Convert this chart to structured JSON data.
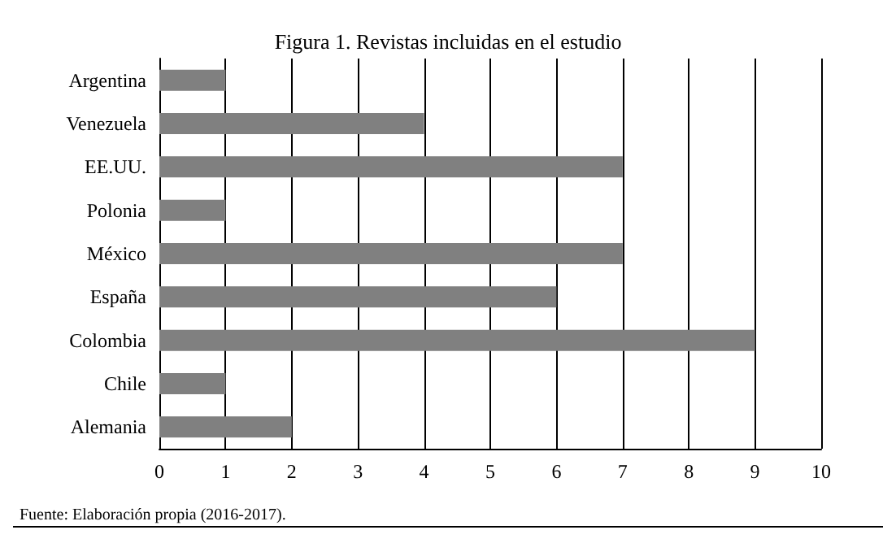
{
  "chart_data": {
    "type": "bar",
    "orientation": "horizontal",
    "title": "Figura 1. Revistas incluidas en el estudio",
    "categories": [
      "Argentina",
      "Venezuela",
      "EE.UU.",
      "Polonia",
      "México",
      "España",
      "Colombia",
      "Chile",
      "Alemania"
    ],
    "values": [
      1,
      4,
      7,
      1,
      7,
      6,
      9,
      1,
      2
    ],
    "color": "#808080",
    "xlim": [
      0,
      10
    ],
    "xticks": [
      0,
      1,
      2,
      3,
      4,
      5,
      6,
      7,
      8,
      9,
      10
    ],
    "grid": "x",
    "annotations": [
      "Fuente: Elaboración propia (2016-2017)."
    ]
  }
}
